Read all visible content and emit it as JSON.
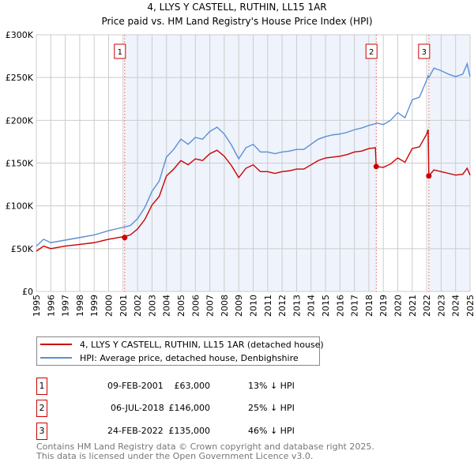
{
  "chart_data": {
    "type": "line",
    "title": "4, LLYS Y CASTELL, RUTHIN, LL15 1AR",
    "subtitle": "Price paid vs. HM Land Registry's House Price Index (HPI)",
    "ylim": [
      0,
      300000
    ],
    "xlim": [
      1995,
      2025
    ],
    "yticks": [
      {
        "v": 0,
        "label": "£0"
      },
      {
        "v": 50000,
        "label": "£50K"
      },
      {
        "v": 100000,
        "label": "£100K"
      },
      {
        "v": 150000,
        "label": "£150K"
      },
      {
        "v": 200000,
        "label": "£200K"
      },
      {
        "v": 250000,
        "label": "£250K"
      },
      {
        "v": 300000,
        "label": "£300K"
      }
    ],
    "xticks": [
      "1995",
      "1996",
      "1997",
      "1998",
      "1999",
      "2000",
      "2001",
      "2002",
      "2003",
      "2004",
      "2005",
      "2006",
      "2007",
      "2008",
      "2009",
      "2010",
      "2011",
      "2012",
      "2013",
      "2014",
      "2015",
      "2016",
      "2017",
      "2018",
      "2019",
      "2020",
      "2021",
      "2022",
      "2023",
      "2024",
      "2025"
    ],
    "grid": true,
    "x": [
      1995,
      1995.5,
      1996,
      1997,
      1998,
      1999,
      2000,
      2001,
      2001.5,
      2002,
      2002.5,
      2003,
      2003.5,
      2004,
      2004.5,
      2005,
      2005.5,
      2006,
      2006.5,
      2007,
      2007.5,
      2008,
      2008.5,
      2009,
      2009.5,
      2010,
      2010.5,
      2011,
      2011.5,
      2012,
      2012.5,
      2013,
      2013.5,
      2014,
      2014.5,
      2015,
      2015.5,
      2016,
      2016.5,
      2017,
      2017.5,
      2018,
      2018.45,
      2018.51,
      2019,
      2019.5,
      2020,
      2020.5,
      2021,
      2021.5,
      2022,
      2022.1,
      2022.15,
      2022.5,
      2023,
      2023.5,
      2024,
      2024.5,
      2024.8,
      2025
    ],
    "series": [
      {
        "name": "4, LLYS Y CASTELL, RUTHIN, LL15 1AR (detached house)",
        "color": "#cc0000",
        "values": [
          47,
          53,
          50,
          53,
          55,
          57,
          61,
          64,
          66,
          73,
          84,
          101,
          111,
          135,
          143,
          153,
          148,
          155,
          153,
          161,
          165,
          158,
          147,
          133,
          144,
          148,
          140,
          140,
          138,
          140,
          141,
          143,
          143,
          148,
          153,
          156,
          157,
          158,
          160,
          163,
          164,
          167,
          168,
          146,
          145,
          149,
          156,
          151,
          167,
          169,
          184,
          189,
          135,
          142,
          140,
          138,
          136,
          137,
          144,
          136
        ]
      },
      {
        "name": "HPI: Average price, detached house, Denbighshire",
        "color": "#5b8fd4",
        "values": [
          53,
          61,
          57,
          60,
          63,
          66,
          71,
          75,
          77,
          85,
          98,
          117,
          129,
          157,
          166,
          178,
          172,
          180,
          178,
          187,
          192,
          184,
          171,
          155,
          168,
          172,
          163,
          163,
          161,
          163,
          164,
          166,
          166,
          172,
          178,
          181,
          183,
          184,
          186,
          189,
          191,
          194,
          196,
          197,
          195,
          200,
          209,
          203,
          224,
          227,
          247,
          252,
          250,
          261,
          258,
          254,
          251,
          254,
          266,
          251
        ]
      }
    ],
    "value_unit": "thousands GBP",
    "sales": [
      {
        "label": "1",
        "date": "09-FEB-2001",
        "x": 2001.11,
        "price_value": 63000,
        "price": "£63,000",
        "hpi": "13% ↓ HPI"
      },
      {
        "label": "2",
        "date": "06-JUL-2018",
        "x": 2018.51,
        "price_value": 146000,
        "price": "£146,000",
        "hpi": "25% ↓ HPI"
      },
      {
        "label": "3",
        "date": "24-FEB-2022",
        "x": 2022.15,
        "price_value": 135000,
        "price": "£135,000",
        "hpi": "46% ↓ HPI"
      }
    ],
    "shade_color": "#eef3fc"
  },
  "footer": {
    "line1": "Contains HM Land Registry data © Crown copyright and database right 2025.",
    "line2": "This data is licensed under the Open Government Licence v3.0."
  }
}
